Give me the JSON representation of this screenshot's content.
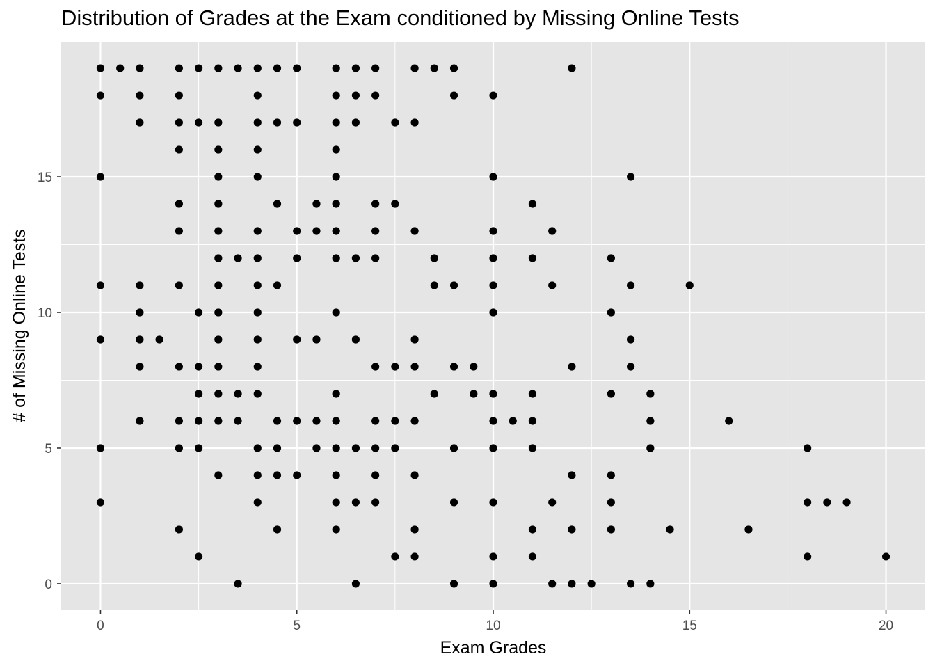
{
  "chart_data": {
    "type": "scatter",
    "title": "Distribution of Grades at the Exam conditioned by Missing Online Tests",
    "xlabel": "Exam Grades",
    "ylabel": "# of Missing Online Tests",
    "xlim": [
      -1,
      21
    ],
    "ylim": [
      -0.95,
      19.95
    ],
    "x_ticks": [
      0,
      5,
      10,
      15,
      20
    ],
    "y_ticks": [
      0,
      5,
      10,
      15
    ],
    "grid": true,
    "panel_color": "#e5e5e5",
    "grid_color": "#ffffff",
    "point_color": "#000000",
    "points": [
      [
        0,
        19
      ],
      [
        0.5,
        19
      ],
      [
        1,
        19
      ],
      [
        2,
        19
      ],
      [
        2.5,
        19
      ],
      [
        3,
        19
      ],
      [
        3.5,
        19
      ],
      [
        4,
        19
      ],
      [
        4.5,
        19
      ],
      [
        5,
        19
      ],
      [
        6,
        19
      ],
      [
        6.5,
        19
      ],
      [
        7,
        19
      ],
      [
        8,
        19
      ],
      [
        8.5,
        19
      ],
      [
        9,
        19
      ],
      [
        12,
        19
      ],
      [
        0,
        18
      ],
      [
        1,
        18
      ],
      [
        2,
        18
      ],
      [
        4,
        18
      ],
      [
        6,
        18
      ],
      [
        6.5,
        18
      ],
      [
        7,
        18
      ],
      [
        9,
        18
      ],
      [
        10,
        18
      ],
      [
        1,
        17
      ],
      [
        2,
        17
      ],
      [
        2.5,
        17
      ],
      [
        3,
        17
      ],
      [
        4,
        17
      ],
      [
        4.5,
        17
      ],
      [
        5,
        17
      ],
      [
        6,
        17
      ],
      [
        6.5,
        17
      ],
      [
        7.5,
        17
      ],
      [
        8,
        17
      ],
      [
        2,
        16
      ],
      [
        3,
        16
      ],
      [
        4,
        16
      ],
      [
        6,
        16
      ],
      [
        0,
        15
      ],
      [
        3,
        15
      ],
      [
        4,
        15
      ],
      [
        6,
        15
      ],
      [
        10,
        15
      ],
      [
        13.5,
        15
      ],
      [
        2,
        14
      ],
      [
        3,
        14
      ],
      [
        4.5,
        14
      ],
      [
        5.5,
        14
      ],
      [
        6,
        14
      ],
      [
        7,
        14
      ],
      [
        7.5,
        14
      ],
      [
        11,
        14
      ],
      [
        2,
        13
      ],
      [
        3,
        13
      ],
      [
        4,
        13
      ],
      [
        5,
        13
      ],
      [
        5.5,
        13
      ],
      [
        6,
        13
      ],
      [
        7,
        13
      ],
      [
        8,
        13
      ],
      [
        10,
        13
      ],
      [
        11.5,
        13
      ],
      [
        3,
        12
      ],
      [
        3.5,
        12
      ],
      [
        4,
        12
      ],
      [
        5,
        12
      ],
      [
        6,
        12
      ],
      [
        6.5,
        12
      ],
      [
        7,
        12
      ],
      [
        8.5,
        12
      ],
      [
        10,
        12
      ],
      [
        11,
        12
      ],
      [
        13,
        12
      ],
      [
        0,
        11
      ],
      [
        1,
        11
      ],
      [
        2,
        11
      ],
      [
        3,
        11
      ],
      [
        4,
        11
      ],
      [
        4.5,
        11
      ],
      [
        8.5,
        11
      ],
      [
        9,
        11
      ],
      [
        10,
        11
      ],
      [
        11.5,
        11
      ],
      [
        13.5,
        11
      ],
      [
        15,
        11
      ],
      [
        1,
        10
      ],
      [
        2.5,
        10
      ],
      [
        3,
        10
      ],
      [
        4,
        10
      ],
      [
        6,
        10
      ],
      [
        10,
        10
      ],
      [
        13,
        10
      ],
      [
        0,
        9
      ],
      [
        1,
        9
      ],
      [
        1.5,
        9
      ],
      [
        3,
        9
      ],
      [
        4,
        9
      ],
      [
        5,
        9
      ],
      [
        5.5,
        9
      ],
      [
        6.5,
        9
      ],
      [
        8,
        9
      ],
      [
        13.5,
        9
      ],
      [
        1,
        8
      ],
      [
        2,
        8
      ],
      [
        2.5,
        8
      ],
      [
        3,
        8
      ],
      [
        4,
        8
      ],
      [
        7,
        8
      ],
      [
        7.5,
        8
      ],
      [
        8,
        8
      ],
      [
        9,
        8
      ],
      [
        9.5,
        8
      ],
      [
        12,
        8
      ],
      [
        13.5,
        8
      ],
      [
        2.5,
        7
      ],
      [
        3,
        7
      ],
      [
        3.5,
        7
      ],
      [
        4,
        7
      ],
      [
        6,
        7
      ],
      [
        8.5,
        7
      ],
      [
        9.5,
        7
      ],
      [
        10,
        7
      ],
      [
        11,
        7
      ],
      [
        13,
        7
      ],
      [
        14,
        7
      ],
      [
        1,
        6
      ],
      [
        2,
        6
      ],
      [
        2.5,
        6
      ],
      [
        3,
        6
      ],
      [
        3.5,
        6
      ],
      [
        4.5,
        6
      ],
      [
        5,
        6
      ],
      [
        5.5,
        6
      ],
      [
        6,
        6
      ],
      [
        7,
        6
      ],
      [
        7.5,
        6
      ],
      [
        8,
        6
      ],
      [
        10,
        6
      ],
      [
        10.5,
        6
      ],
      [
        11,
        6
      ],
      [
        14,
        6
      ],
      [
        16,
        6
      ],
      [
        0,
        5
      ],
      [
        2,
        5
      ],
      [
        2.5,
        5
      ],
      [
        4,
        5
      ],
      [
        4.5,
        5
      ],
      [
        5.5,
        5
      ],
      [
        6,
        5
      ],
      [
        6.5,
        5
      ],
      [
        7,
        5
      ],
      [
        7.5,
        5
      ],
      [
        9,
        5
      ],
      [
        10,
        5
      ],
      [
        11,
        5
      ],
      [
        14,
        5
      ],
      [
        18,
        5
      ],
      [
        3,
        4
      ],
      [
        4,
        4
      ],
      [
        4.5,
        4
      ],
      [
        5,
        4
      ],
      [
        6,
        4
      ],
      [
        7,
        4
      ],
      [
        8,
        4
      ],
      [
        12,
        4
      ],
      [
        13,
        4
      ],
      [
        0,
        3
      ],
      [
        4,
        3
      ],
      [
        6,
        3
      ],
      [
        6.5,
        3
      ],
      [
        7,
        3
      ],
      [
        9,
        3
      ],
      [
        10,
        3
      ],
      [
        11.5,
        3
      ],
      [
        13,
        3
      ],
      [
        18,
        3
      ],
      [
        18.5,
        3
      ],
      [
        19,
        3
      ],
      [
        2,
        2
      ],
      [
        4.5,
        2
      ],
      [
        6,
        2
      ],
      [
        8,
        2
      ],
      [
        11,
        2
      ],
      [
        12,
        2
      ],
      [
        13,
        2
      ],
      [
        14.5,
        2
      ],
      [
        16.5,
        2
      ],
      [
        2.5,
        1
      ],
      [
        7.5,
        1
      ],
      [
        8,
        1
      ],
      [
        10,
        1
      ],
      [
        11,
        1
      ],
      [
        18,
        1
      ],
      [
        20,
        1
      ],
      [
        3.5,
        0
      ],
      [
        6.5,
        0
      ],
      [
        9,
        0
      ],
      [
        10,
        0
      ],
      [
        11.5,
        0
      ],
      [
        12,
        0
      ],
      [
        12.5,
        0
      ],
      [
        13.5,
        0
      ],
      [
        14,
        0
      ]
    ]
  }
}
